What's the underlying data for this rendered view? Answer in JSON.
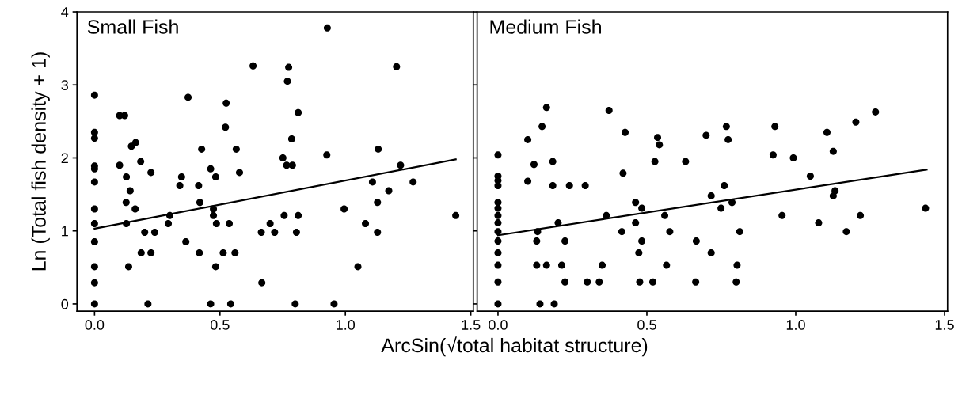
{
  "chart_data": [
    {
      "type": "scatter",
      "title": "Small Fish",
      "xlabel": "ArcSin(√total habitat structure)",
      "ylabel": "Ln (Total fish density + 1)",
      "marker": "circle",
      "grid": false,
      "legend": false,
      "xlim": [
        -0.07,
        1.51
      ],
      "ylim": [
        -0.1,
        4
      ],
      "xticks": [
        {
          "value": 0,
          "label": "0.0"
        },
        {
          "value": 0.5,
          "label": "0.5"
        },
        {
          "value": 1,
          "label": "1.0"
        },
        {
          "value": 1.5,
          "label": "1.5"
        }
      ],
      "yticks": [
        0,
        1,
        2,
        3,
        4
      ],
      "series": [
        {
          "color": "#000000",
          "x": [
            0,
            0,
            0,
            0,
            0,
            0,
            0,
            0,
            0,
            0,
            0,
            0,
            0.1,
            0.12,
            0.1,
            0.127,
            0.142,
            0.126,
            0.147,
            0.164,
            0.162,
            0.127,
            0.136,
            0.184,
            0.225,
            0.2,
            0.24,
            0.186,
            0.225,
            0.213,
            0.3,
            0.294,
            0.34,
            0.347,
            0.373,
            0.364,
            0.427,
            0.415,
            0.42,
            0.418,
            0.463,
            0.483,
            0.474,
            0.474,
            0.486,
            0.483,
            0.463,
            0.525,
            0.522,
            0.565,
            0.578,
            0.537,
            0.513,
            0.56,
            0.543,
            0.632,
            0.667,
            0.665,
            0.7,
            0.718,
            0.774,
            0.769,
            0.812,
            0.786,
            0.751,
            0.766,
            0.789,
            0.756,
            0.812,
            0.805,
            0.8,
            0.928,
            0.926,
            0.955,
            0.995,
            1.05,
            1.08,
            1.108,
            1.128,
            1.128,
            1.131,
            1.173,
            1.204,
            1.22,
            1.27,
            1.44
          ],
          "values": [
            2.86,
            2.35,
            2.27,
            1.89,
            1.85,
            1.67,
            1.3,
            1.1,
            0.85,
            0.51,
            0.29,
            0,
            2.58,
            2.58,
            1.9,
            1.74,
            1.55,
            1.39,
            2.16,
            2.21,
            1.3,
            1.1,
            0.51,
            1.95,
            1.8,
            0.98,
            0.98,
            0.7,
            0.7,
            0,
            1.21,
            1.1,
            1.62,
            1.74,
            2.83,
            0.85,
            2.12,
            1.62,
            1.39,
            0.7,
            1.85,
            1.74,
            1.3,
            1.21,
            1.1,
            0.51,
            0,
            2.75,
            2.42,
            2.12,
            1.8,
            1.1,
            0.7,
            0.7,
            0,
            3.26,
            0.29,
            0.98,
            1.1,
            0.98,
            3.24,
            3.05,
            2.62,
            2.26,
            2.0,
            1.9,
            1.9,
            1.21,
            1.21,
            0.98,
            0,
            3.78,
            2.04,
            0,
            1.3,
            0.51,
            1.1,
            1.67,
            1.39,
            0.98,
            2.12,
            1.55,
            3.25,
            1.9,
            1.67,
            1.21
          ]
        },
        {
          "type": "line",
          "marker": "none",
          "color": "#000000",
          "x": [
            0,
            1.44
          ],
          "values": [
            1.03,
            1.98
          ]
        }
      ]
    },
    {
      "type": "scatter",
      "title": "Medium Fish",
      "marker": "circle",
      "grid": false,
      "legend": false,
      "tick_labels": "x",
      "xlim": [
        -0.07,
        1.51
      ],
      "ylim": [
        -0.1,
        4
      ],
      "xticks": [
        {
          "value": 0,
          "label": "0.0"
        },
        {
          "value": 0.5,
          "label": "0.5"
        },
        {
          "value": 1,
          "label": "1.0"
        },
        {
          "value": 1.5,
          "label": "1.5"
        }
      ],
      "yticks": [
        0,
        1,
        2,
        3,
        4
      ],
      "series": [
        {
          "color": "#000000",
          "x": [
            0,
            0,
            0,
            0,
            0,
            0,
            0,
            0,
            0,
            0,
            0,
            0,
            0,
            0,
            0.1,
            0.1,
            0.121,
            0.148,
            0.163,
            0.184,
            0.184,
            0.133,
            0.13,
            0.13,
            0.163,
            0.141,
            0.189,
            0.202,
            0.225,
            0.214,
            0.225,
            0.24,
            0.293,
            0.3,
            0.34,
            0.35,
            0.364,
            0.373,
            0.427,
            0.42,
            0.416,
            0.462,
            0.483,
            0.462,
            0.483,
            0.473,
            0.476,
            0.52,
            0.527,
            0.536,
            0.542,
            0.56,
            0.577,
            0.566,
            0.63,
            0.664,
            0.666,
            0.699,
            0.716,
            0.716,
            0.76,
            0.767,
            0.773,
            0.749,
            0.786,
            0.812,
            0.803,
            0.8,
            0.924,
            0.93,
            0.954,
            0.992,
            1.049,
            1.077,
            1.105,
            1.126,
            1.132,
            1.126,
            1.17,
            1.202,
            1.217,
            1.268,
            1.436
          ],
          "values": [
            2.04,
            1.75,
            1.69,
            1.62,
            1.39,
            1.31,
            1.21,
            1.11,
            0.99,
            0.86,
            0.7,
            0.53,
            0.3,
            0,
            2.25,
            1.68,
            1.91,
            2.43,
            2.69,
            1.95,
            1.62,
            0.99,
            0.86,
            0.53,
            0.53,
            0,
            0,
            1.11,
            0.86,
            0.53,
            0.3,
            1.62,
            1.62,
            0.3,
            0.3,
            0.53,
            1.21,
            2.65,
            2.35,
            1.79,
            0.99,
            1.39,
            1.31,
            1.11,
            0.86,
            0.7,
            0.3,
            0.3,
            1.95,
            2.28,
            2.18,
            1.21,
            0.99,
            0.53,
            1.95,
            0.3,
            0.86,
            2.31,
            1.48,
            0.7,
            1.62,
            2.43,
            2.25,
            1.31,
            1.39,
            0.99,
            0.53,
            0.3,
            2.04,
            2.43,
            1.21,
            2.0,
            1.75,
            1.11,
            2.35,
            2.09,
            1.55,
            1.48,
            0.99,
            2.49,
            1.21,
            2.63,
            1.31
          ]
        },
        {
          "type": "line",
          "marker": "none",
          "color": "#000000",
          "x": [
            0,
            1.44
          ],
          "values": [
            0.94,
            1.84
          ]
        }
      ]
    }
  ]
}
